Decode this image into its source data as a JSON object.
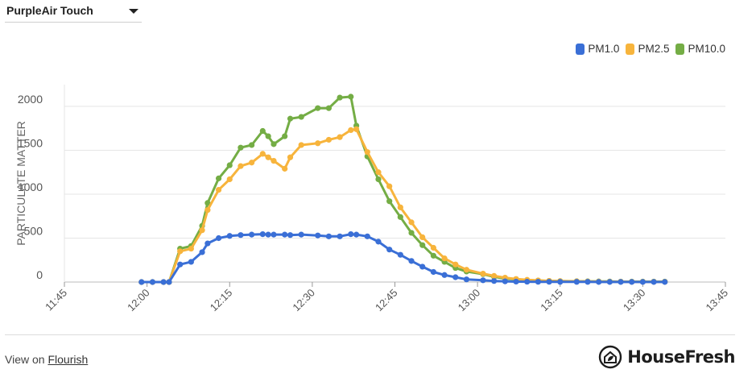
{
  "selector": {
    "label": "PurpleAir Touch"
  },
  "footer": {
    "prefix": "View on ",
    "link": "Flourish"
  },
  "brand": {
    "name": "HouseFresh",
    "logo": "house-leaf-logo"
  },
  "colors": {
    "PM1.0": "#3a6fd6",
    "PM2.5": "#f7b43c",
    "PM10.0": "#74ad45",
    "grid": "#e6e6e6",
    "axis": "#bbbbbb"
  },
  "chart_data": {
    "type": "line",
    "ylabel": "PARTICULATE MATTER",
    "xlabel": "",
    "ylim": [
      0,
      2000
    ],
    "yticks": [
      0,
      500,
      1000,
      1500,
      2000
    ],
    "xlim": [
      "11:45",
      "13:45"
    ],
    "xticks": [
      "11:45",
      "12:00",
      "12:15",
      "12:30",
      "12:45",
      "13:00",
      "13:15",
      "13:30",
      "13:45"
    ],
    "legend": "top-right",
    "grid": true,
    "x": [
      "11:59",
      "12:01",
      "12:03",
      "12:04",
      "12:06",
      "12:08",
      "12:10",
      "12:11",
      "12:13",
      "12:15",
      "12:17",
      "12:19",
      "12:21",
      "12:22",
      "12:23",
      "12:25",
      "12:26",
      "12:28",
      "12:31",
      "12:33",
      "12:35",
      "12:37",
      "12:38",
      "12:40",
      "12:42",
      "12:44",
      "12:46",
      "12:48",
      "12:50",
      "12:52",
      "12:54",
      "12:56",
      "12:58",
      "13:01",
      "13:03",
      "13:05",
      "13:07",
      "13:09",
      "13:11",
      "13:13",
      "13:15",
      "13:18",
      "13:20",
      "13:22",
      "13:24",
      "13:26",
      "13:28",
      "13:30",
      "13:32",
      "13:34"
    ],
    "series": [
      {
        "name": "PM1.0",
        "values": [
          0,
          0,
          0,
          0,
          200,
          230,
          340,
          440,
          500,
          525,
          535,
          540,
          545,
          540,
          540,
          540,
          535,
          540,
          530,
          520,
          520,
          545,
          540,
          520,
          460,
          370,
          310,
          240,
          175,
          115,
          80,
          55,
          30,
          20,
          12,
          8,
          5,
          4,
          3,
          3,
          2,
          2,
          2,
          1,
          1,
          1,
          1,
          1,
          1,
          1
        ]
      },
      {
        "name": "PM2.5",
        "values": [
          0,
          0,
          0,
          0,
          350,
          380,
          590,
          820,
          1050,
          1170,
          1320,
          1360,
          1460,
          1420,
          1380,
          1290,
          1420,
          1560,
          1580,
          1620,
          1650,
          1730,
          1740,
          1480,
          1250,
          1090,
          850,
          680,
          510,
          390,
          270,
          200,
          140,
          95,
          70,
          50,
          35,
          25,
          18,
          13,
          10,
          8,
          6,
          5,
          4,
          4,
          3,
          3,
          3,
          3
        ]
      },
      {
        "name": "PM10.0",
        "values": [
          0,
          0,
          0,
          0,
          380,
          410,
          640,
          900,
          1180,
          1330,
          1530,
          1560,
          1720,
          1660,
          1570,
          1660,
          1860,
          1880,
          1980,
          1980,
          2100,
          2110,
          1780,
          1430,
          1170,
          920,
          740,
          560,
          420,
          300,
          230,
          160,
          120,
          90,
          60,
          40,
          30,
          22,
          17,
          13,
          11,
          9,
          8,
          7,
          6,
          5,
          5,
          5,
          5,
          5
        ]
      }
    ]
  }
}
